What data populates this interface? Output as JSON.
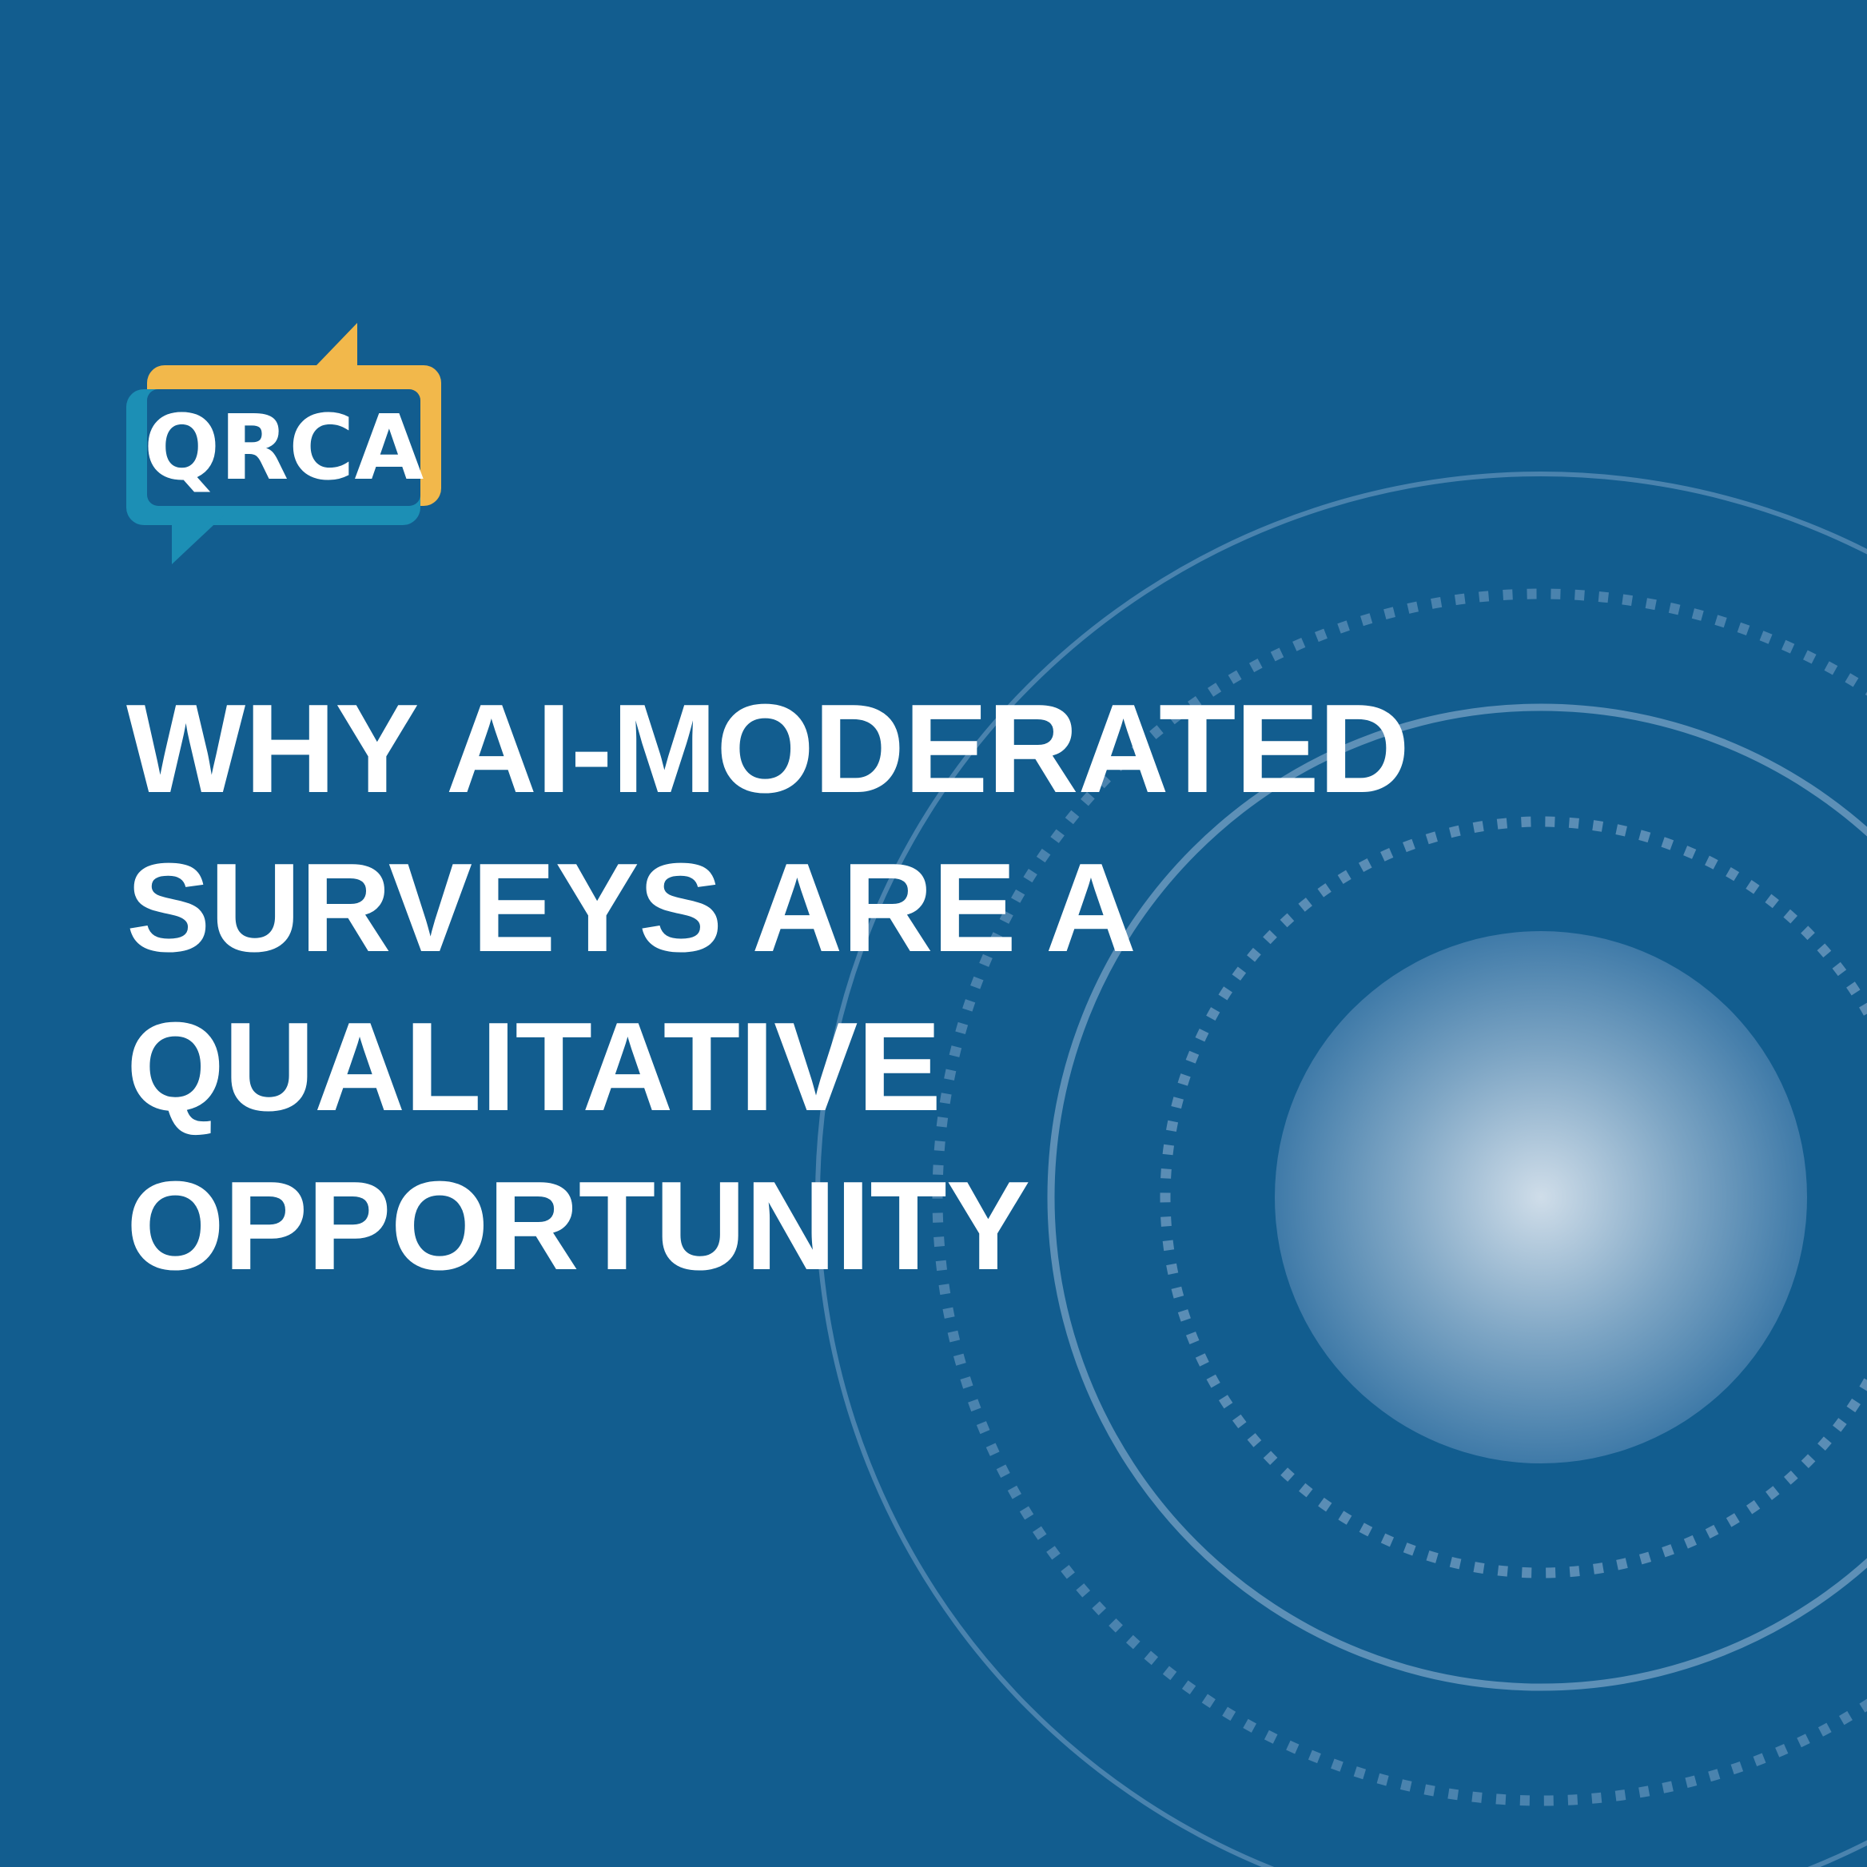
{
  "brand": {
    "name": "QRCA",
    "colors": {
      "yellow": "#f2b84b",
      "teal": "#1c8fb5",
      "background": "#125d8f"
    }
  },
  "headline": {
    "lines": [
      "WHY AI-MODERATED",
      "SURVEYS ARE A",
      "QUALITATIVE",
      "OPPORTUNITY"
    ]
  },
  "decoration": {
    "icon": "concentric-circles-orb-icon"
  }
}
